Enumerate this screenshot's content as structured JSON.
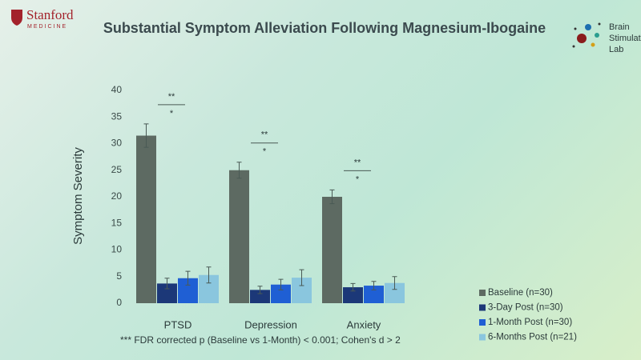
{
  "header": {
    "org": "Stanford",
    "org_sub": "MEDICINE",
    "lab": [
      "Brain",
      "Stimulat",
      "Lab"
    ]
  },
  "chart_data": {
    "type": "bar",
    "title": "Substantial Symptom Alleviation Following Magnesium-Ibogaine",
    "y_label": "Symptom Severity",
    "categories": [
      "PTSD",
      "Depression",
      "Anxiety"
    ],
    "series": [
      {
        "name": "Baseline (n=30)",
        "color": "#5d6a62",
        "values": [
          31.5,
          25,
          20
        ],
        "errors": [
          2.2,
          1.5,
          1.3
        ]
      },
      {
        "name": "3-Day Post (n=30)",
        "color": "#1c3878",
        "values": [
          3.7,
          2.5,
          3
        ],
        "errors": [
          1,
          0.7,
          0.7
        ]
      },
      {
        "name": "1-Month Post (n=30)",
        "color": "#1f5fd4",
        "values": [
          4.7,
          3.5,
          3.3
        ],
        "errors": [
          1.3,
          1,
          0.8
        ]
      },
      {
        "name": "6-Months Post (n=21)",
        "color": "#8ac6de",
        "values": [
          5.3,
          4.8,
          3.8
        ],
        "errors": [
          1.5,
          1.5,
          1.2
        ]
      }
    ],
    "significance": [
      [
        "**",
        "*"
      ],
      [
        "**",
        "*"
      ],
      [
        "**",
        "*"
      ]
    ],
    "ylim": [
      0,
      40
    ],
    "yticks": [
      0,
      5,
      10,
      15,
      20,
      25,
      30,
      35,
      40
    ],
    "grid": false,
    "legend": "bottom-right",
    "footnote": "*** FDR corrected p (Baseline vs 1-Month) < 0.001; Cohen's d > 2"
  }
}
